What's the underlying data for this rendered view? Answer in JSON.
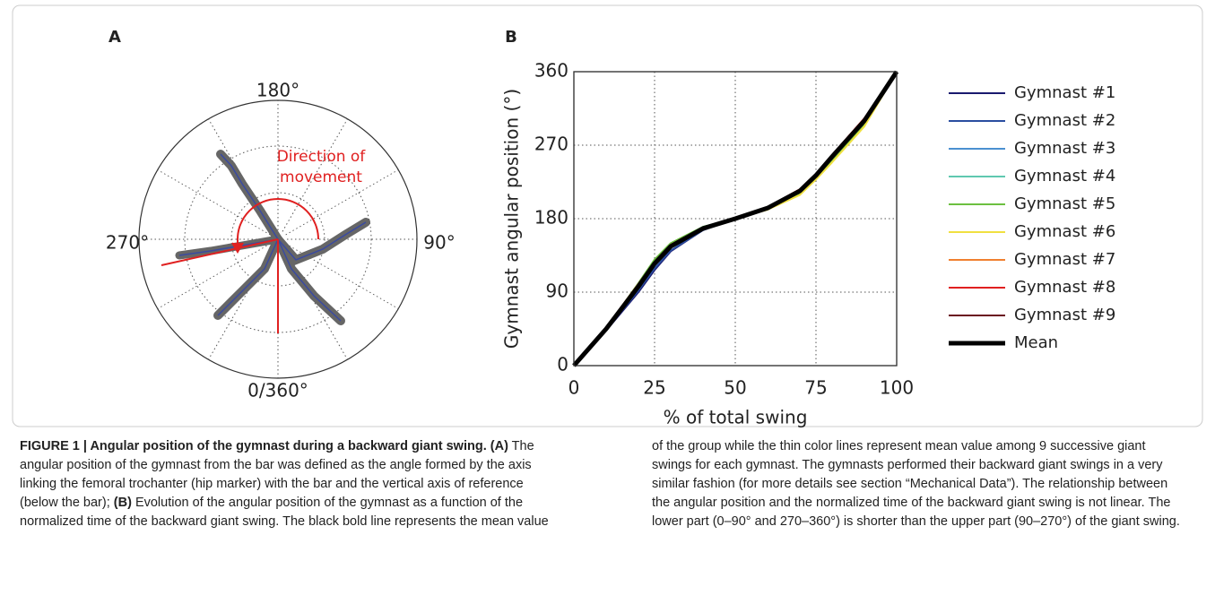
{
  "figure": {
    "panel_a": {
      "label": "A",
      "angle_labels": [
        "180°",
        "90°",
        "270°",
        "0/360°"
      ],
      "annotation": [
        "Direction of",
        "movement"
      ]
    },
    "panel_b": {
      "label": "B"
    }
  },
  "chart_data": {
    "type": "line",
    "ylabel": "Gymnast angular position (°)",
    "xlabel": "% of total swing",
    "x": [
      0,
      10,
      20,
      25,
      30,
      40,
      50,
      60,
      70,
      75,
      80,
      90,
      100
    ],
    "series": [
      {
        "name": "Gymnast #1",
        "color": "#1a1a6e",
        "linewidth": 2,
        "values": [
          0,
          43,
          90,
          117,
          140,
          166,
          180,
          194,
          215,
          234,
          257,
          301,
          360
        ]
      },
      {
        "name": "Gymnast #2",
        "color": "#2a4ea0",
        "linewidth": 2,
        "values": [
          0,
          44,
          92,
          119,
          141,
          166,
          180,
          193,
          214,
          233,
          255,
          299,
          360
        ]
      },
      {
        "name": "Gymnast #3",
        "color": "#4a90d0",
        "linewidth": 2,
        "values": [
          0,
          45,
          96,
          124,
          145,
          168,
          180,
          193,
          213,
          232,
          254,
          298,
          360
        ]
      },
      {
        "name": "Gymnast #4",
        "color": "#60c8b0",
        "linewidth": 2,
        "values": [
          0,
          46,
          100,
          129,
          149,
          170,
          180,
          192,
          212,
          231,
          253,
          297,
          360
        ]
      },
      {
        "name": "Gymnast #5",
        "color": "#6cc040",
        "linewidth": 2,
        "values": [
          0,
          46,
          101,
          130,
          150,
          170,
          180,
          192,
          211,
          230,
          252,
          296,
          360
        ]
      },
      {
        "name": "Gymnast #6",
        "color": "#f0e040",
        "linewidth": 2,
        "values": [
          0,
          45,
          98,
          126,
          147,
          168,
          180,
          191,
          209,
          228,
          249,
          293,
          360
        ]
      },
      {
        "name": "Gymnast #7",
        "color": "#f08030",
        "linewidth": 2,
        "values": [
          0,
          46,
          99,
          127,
          147,
          169,
          180,
          193,
          214,
          233,
          256,
          301,
          360
        ]
      },
      {
        "name": "Gymnast #8",
        "color": "#e02020",
        "linewidth": 2,
        "values": [
          0,
          47,
          100,
          127,
          148,
          169,
          180,
          194,
          216,
          235,
          258,
          303,
          360
        ]
      },
      {
        "name": "Gymnast #9",
        "color": "#6a1020",
        "linewidth": 2,
        "values": [
          0,
          45,
          97,
          125,
          146,
          168,
          180,
          193,
          214,
          234,
          257,
          301,
          360
        ]
      },
      {
        "name": "Mean",
        "color": "#000000",
        "linewidth": 5,
        "values": [
          0,
          45,
          97,
          125,
          146,
          168,
          180,
          193,
          214,
          233,
          256,
          300,
          360
        ]
      }
    ],
    "xlim": [
      0,
      100
    ],
    "ylim": [
      0,
      360
    ],
    "xticks": [
      0,
      25,
      50,
      75,
      100
    ],
    "yticks": [
      0,
      90,
      180,
      270,
      360
    ],
    "grid": true,
    "legend": "right"
  },
  "caption": {
    "title": "FIGURE 1 | Angular position of the gymnast during a backward giant swing.",
    "parts": [
      {
        "label": "(A)",
        "text": " The angular position of the gymnast from the bar was defined as the angle formed by the axis linking the femoral trochanter (hip marker) with the bar and the vertical axis of reference (below the bar); "
      },
      {
        "label": "(B)",
        "text": " Evolution of the angular position of the gymnast as a function of the normalized time of the backward giant swing. The black bold line represents the mean value of the group while the thin color lines represent mean value among 9 successive giant swings for each gymnast. The gymnasts performed their backward giant swings in a very similar fashion (for more details see section “Mechanical Data”). The relationship between the angular position and the normalized time of the backward giant swing is not linear. The lower part (0–90° and 270–360°) is shorter than the upper part (90–270°) of the giant swing."
      }
    ]
  }
}
